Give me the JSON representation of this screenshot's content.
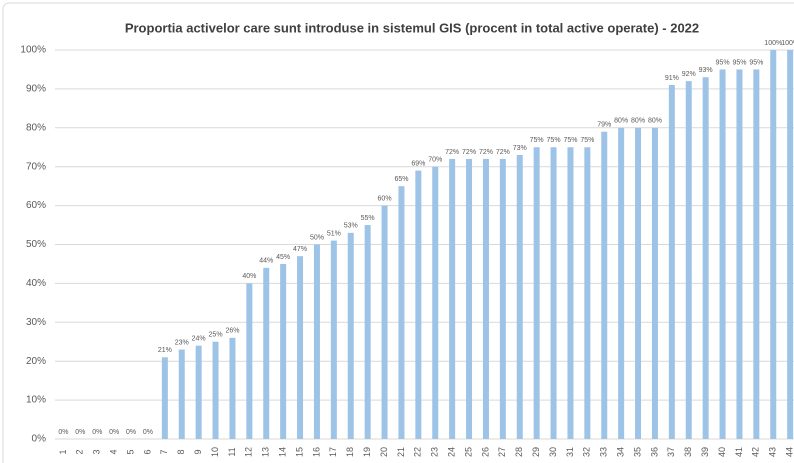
{
  "chart_data": {
    "type": "bar",
    "title": "Proportia activelor care sunt introduse in sistemul GIS (procent in total active operate) - 2022",
    "categories": [
      "1",
      "2",
      "3",
      "4",
      "5",
      "6",
      "7",
      "8",
      "9",
      "10",
      "11",
      "12",
      "13",
      "14",
      "15",
      "16",
      "17",
      "18",
      "19",
      "20",
      "21",
      "22",
      "23",
      "24",
      "25",
      "26",
      "27",
      "28",
      "29",
      "30",
      "31",
      "32",
      "33",
      "34",
      "35",
      "36",
      "37",
      "38",
      "39",
      "40",
      "41",
      "42",
      "43",
      "44"
    ],
    "values": [
      0,
      0,
      0,
      0,
      0,
      0,
      21,
      23,
      24,
      25,
      26,
      40,
      44,
      45,
      47,
      50,
      51,
      53,
      55,
      60,
      65,
      69,
      70,
      72,
      72,
      72,
      72,
      73,
      75,
      75,
      75,
      75,
      79,
      80,
      80,
      80,
      91,
      92,
      93,
      95,
      95,
      95,
      100,
      100
    ],
    "value_labels": [
      "0%",
      "0%",
      "0%",
      "0%",
      "0%",
      "0%",
      "21%",
      "23%",
      "24%",
      "25%",
      "26%",
      "40%",
      "44%",
      "45%",
      "47%",
      "50%",
      "51%",
      "53%",
      "55%",
      "60%",
      "65%",
      "69%",
      "70%",
      "72%",
      "72%",
      "72%",
      "72%",
      "73%",
      "75%",
      "75%",
      "75%",
      "75%",
      "79%",
      "80%",
      "80%",
      "80%",
      "91%",
      "92%",
      "93%",
      "95%",
      "95%",
      "95%",
      "100%",
      "100%"
    ],
    "color": "#9dc3e6",
    "ylim": [
      0,
      100
    ],
    "yticks": [
      {
        "value": 0,
        "label": "0%"
      },
      {
        "value": 10,
        "label": "10%"
      },
      {
        "value": 20,
        "label": "20%"
      },
      {
        "value": 30,
        "label": "30%"
      },
      {
        "value": 40,
        "label": "40%"
      },
      {
        "value": 50,
        "label": "50%"
      },
      {
        "value": 60,
        "label": "60%"
      },
      {
        "value": 70,
        "label": "70%"
      },
      {
        "value": 80,
        "label": "80%"
      },
      {
        "value": 90,
        "label": "90%"
      },
      {
        "value": 100,
        "label": "100%"
      }
    ],
    "grid": true
  }
}
